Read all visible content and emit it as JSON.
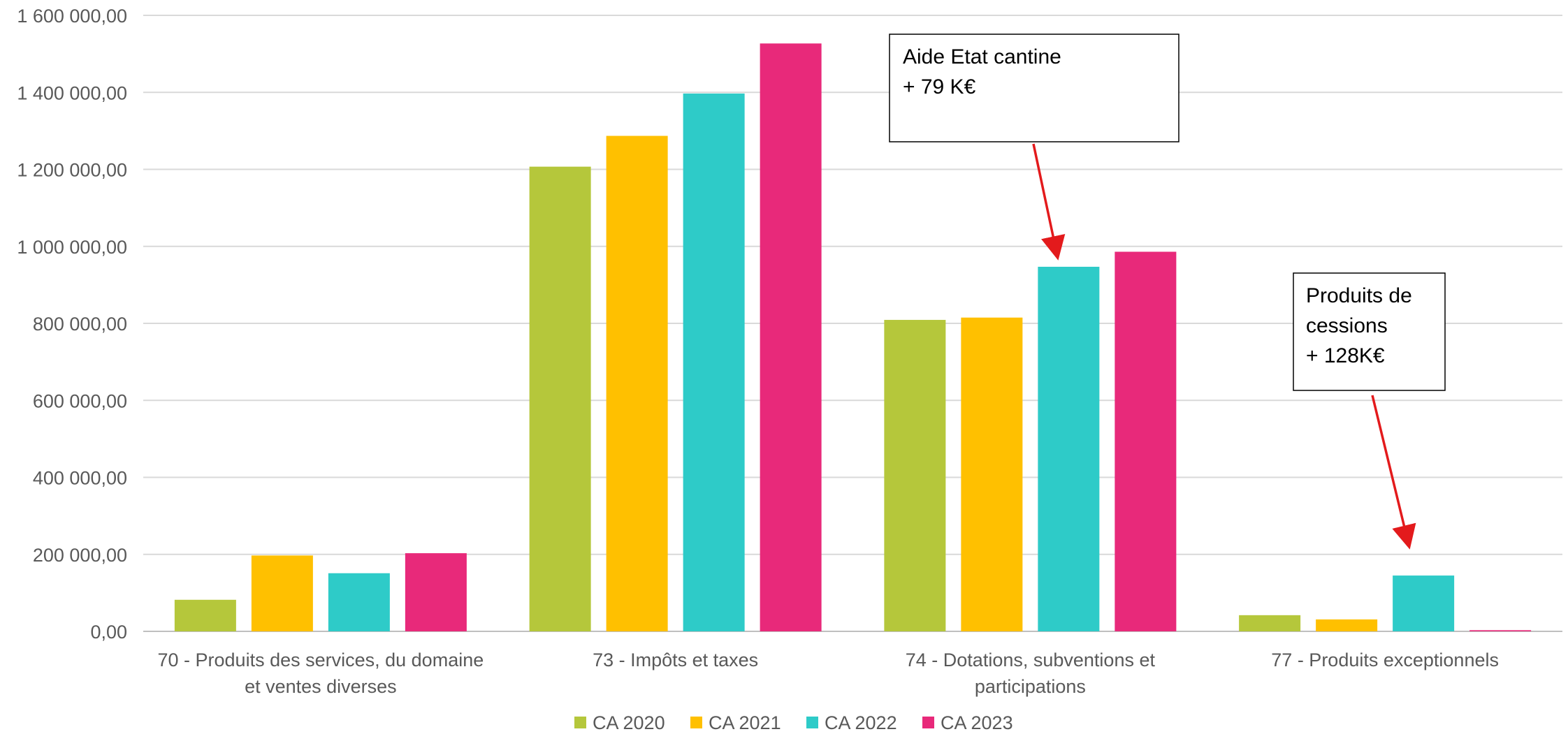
{
  "chart_data": {
    "type": "bar",
    "categories": [
      [
        "70 - Produits des services, du domaine",
        "et ventes diverses"
      ],
      [
        "73 - Impôts et taxes"
      ],
      [
        "74 - Dotations, subventions et",
        "participations"
      ],
      [
        "77 - Produits exceptionnels"
      ]
    ],
    "series": [
      {
        "name": "CA 2020",
        "color": "#B5C73B",
        "values": [
          82000,
          1207000,
          809000,
          42000
        ]
      },
      {
        "name": "CA 2021",
        "color": "#FFC000",
        "values": [
          197000,
          1287000,
          815000,
          31000
        ]
      },
      {
        "name": "CA 2022",
        "color": "#2ECBC8",
        "values": [
          151000,
          1397000,
          947000,
          145000
        ]
      },
      {
        "name": "CA 2023",
        "color": "#E8297A",
        "values": [
          203000,
          1527000,
          986000,
          3000
        ]
      }
    ],
    "y_ticks": [
      "0,00",
      "200 000,00",
      "400 000,00",
      "600 000,00",
      "800 000,00",
      "1 000 000,00",
      "1 200 000,00",
      "1 400 000,00",
      "1 600 000,00"
    ],
    "ylim": [
      0,
      1600000
    ],
    "title": "",
    "xlabel": "",
    "ylabel": "",
    "grid": true,
    "legend_position": "bottom-center",
    "annotations": [
      {
        "lines": [
          "Aide Etat cantine",
          "+ 79 K€"
        ],
        "category": 2,
        "series": 2
      },
      {
        "lines": [
          "Produits de",
          "cessions",
          "+ 128K€"
        ],
        "category": 3,
        "series": 2
      }
    ],
    "annotation_arrow_color": "#E31A1C"
  }
}
